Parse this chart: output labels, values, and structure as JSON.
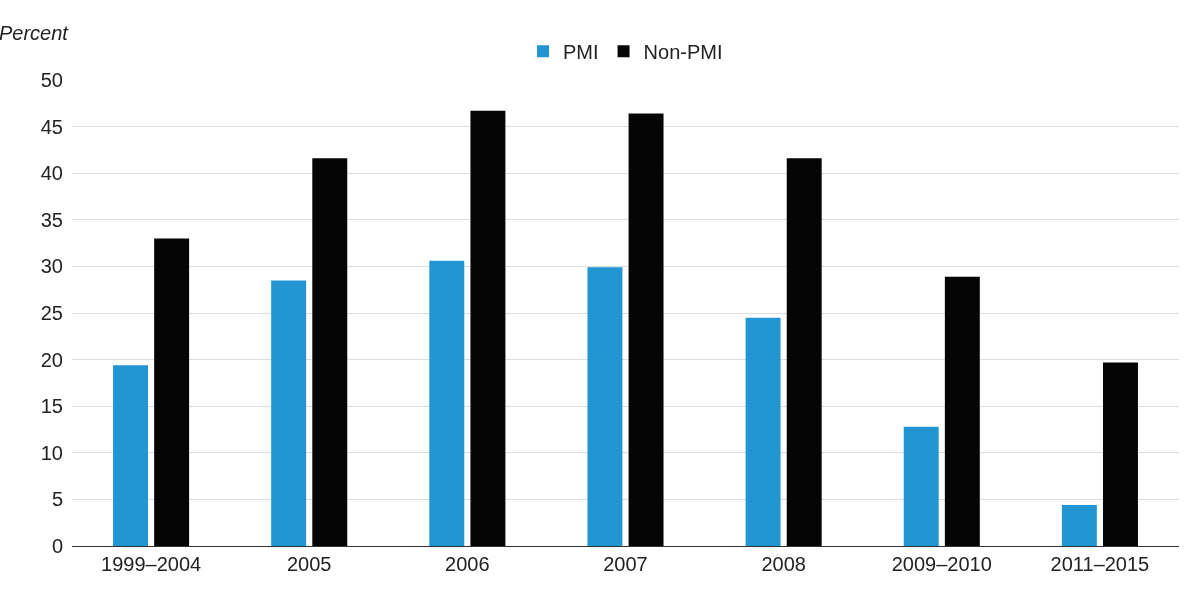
{
  "chart_data": {
    "type": "bar",
    "ylabel": "Percent",
    "categories": [
      "1999–2004",
      "2005",
      "2006",
      "2007",
      "2008",
      "2009–2010",
      "2011–2015"
    ],
    "series": [
      {
        "name": "PMI",
        "color": "#2196d3",
        "values": [
          19.4,
          28.5,
          30.6,
          29.9,
          24.5,
          12.8,
          4.4
        ]
      },
      {
        "name": "Non-PMI",
        "color": "#050505",
        "values": [
          33.0,
          41.6,
          46.7,
          46.4,
          41.6,
          28.9,
          19.7
        ]
      }
    ],
    "ylim": [
      0,
      50
    ],
    "yticks": [
      0,
      5,
      10,
      15,
      20,
      25,
      30,
      35,
      40,
      45,
      50
    ],
    "grid": "y",
    "legend": "top"
  }
}
